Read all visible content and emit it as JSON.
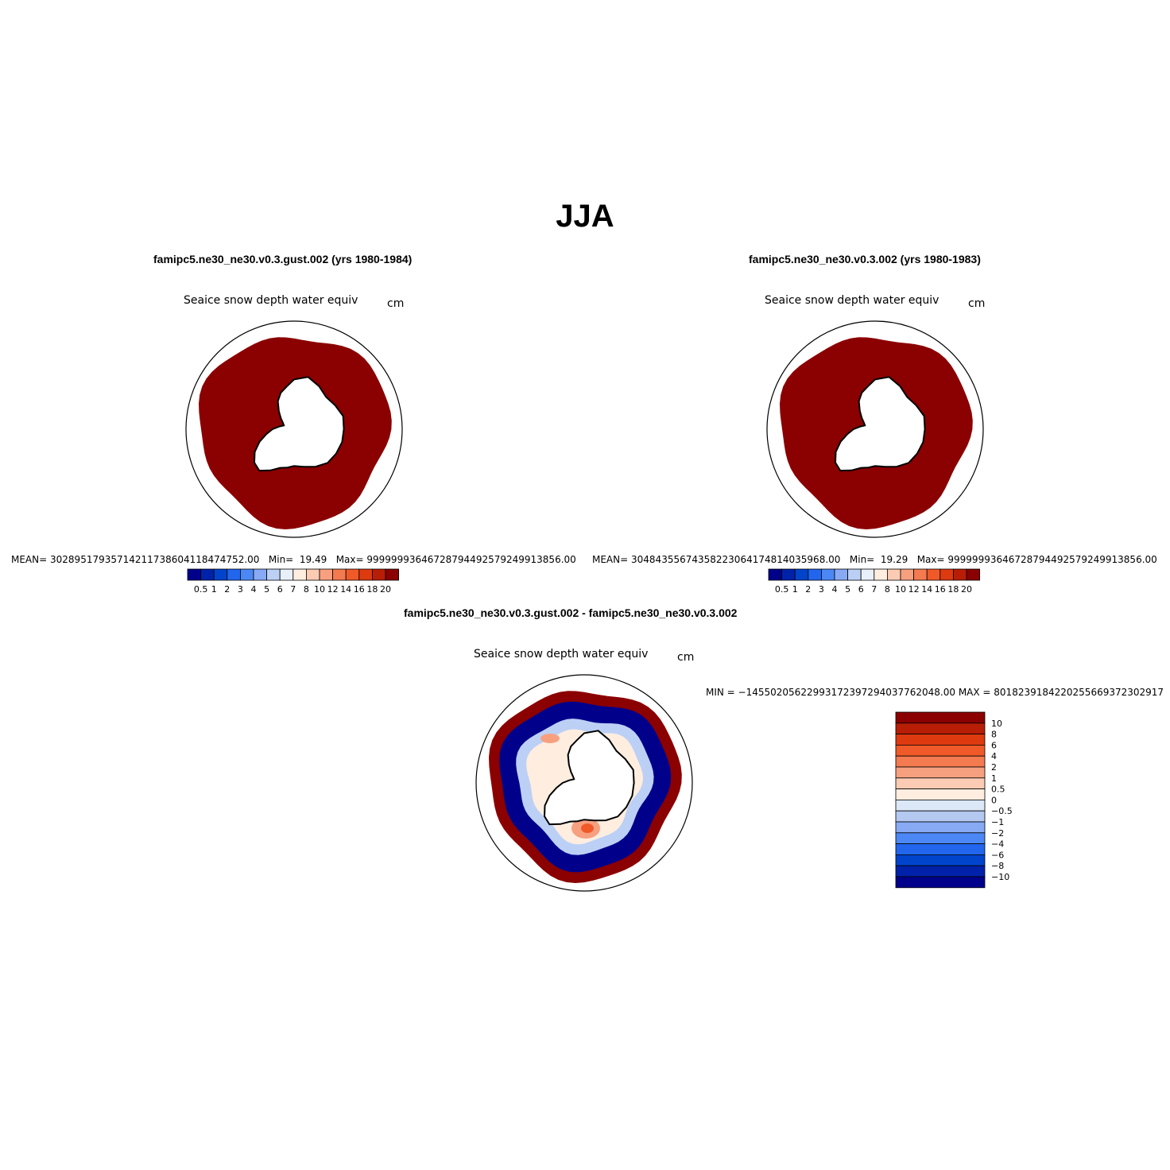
{
  "page": {
    "title": "JJA"
  },
  "panels": [
    {
      "case": "famipc5.ne30_ne30.v0.3.gust.002 (yrs 1980-1984)",
      "variable": "Seaice snow depth water equiv",
      "units": "cm",
      "mean_label": "MEAN=",
      "mean_value": "302895179357142117386041184747​52.00",
      "min_label": "Min=",
      "min_value": "19.49",
      "max_label": "Max=",
      "max_value": "9999999364672879449257924991385​6.00"
    },
    {
      "case": "famipc5.ne30_ne30.v0.3.002 (yrs 1980-1983)",
      "variable": "Seaice snow depth water equiv",
      "units": "cm",
      "mean_label": "MEAN=",
      "mean_value": "304843556743582230641748140359​68.00",
      "min_label": "Min=",
      "min_value": "19.29",
      "max_label": "Max=",
      "max_value": "9999999364672879449257924991385​6.00"
    },
    {
      "case": "famipc5.ne30_ne30.v0.3.gust.002 - famipc5.ne30_ne30.v0.3.002",
      "variable": "Seaice snow depth water equiv",
      "units": "cm",
      "range_text": "MIN = −1455020562299317239729403776​2048.00 MAX = 801823918422025566937230​2917"
    }
  ],
  "colorbar_abs": {
    "colors": [
      "#00008b",
      "#0022aa",
      "#0044cc",
      "#2266ee",
      "#4c88f5",
      "#88aaf5",
      "#bcd0f5",
      "#e8f0fa",
      "#ffeee0",
      "#fbcbb3",
      "#f7a080",
      "#f47a4f",
      "#f05a28",
      "#dd3a10",
      "#b81e06",
      "#8b0000"
    ],
    "labels": [
      "0.5",
      "1",
      "2",
      "3",
      "4",
      "5",
      "6",
      "7",
      "8",
      "10",
      "12",
      "14",
      "16",
      "18",
      "20"
    ]
  },
  "colorbar_diff": {
    "colors": [
      "#8b0000",
      "#b81e06",
      "#dd3a10",
      "#f05a28",
      "#f47a4f",
      "#f7a080",
      "#fbcbb3",
      "#ffeee0",
      "#dce8f8",
      "#b4c8f0",
      "#88aaf5",
      "#4c88f5",
      "#2266ee",
      "#0044cc",
      "#0022aa",
      "#00008b"
    ],
    "labels": [
      "10",
      "8",
      "6",
      "4",
      "2",
      "1",
      "0.5",
      "0",
      "−0.5",
      "−1",
      "−2",
      "−4",
      "−6",
      "−8",
      "−10"
    ]
  },
  "map_colors": {
    "deep_red": "#8b0000",
    "dark_blue": "#00008b",
    "light_blue": "#bcd0f5",
    "pale": "#ffeee0",
    "salmon": "#f7a080",
    "orange": "#f05a28"
  }
}
